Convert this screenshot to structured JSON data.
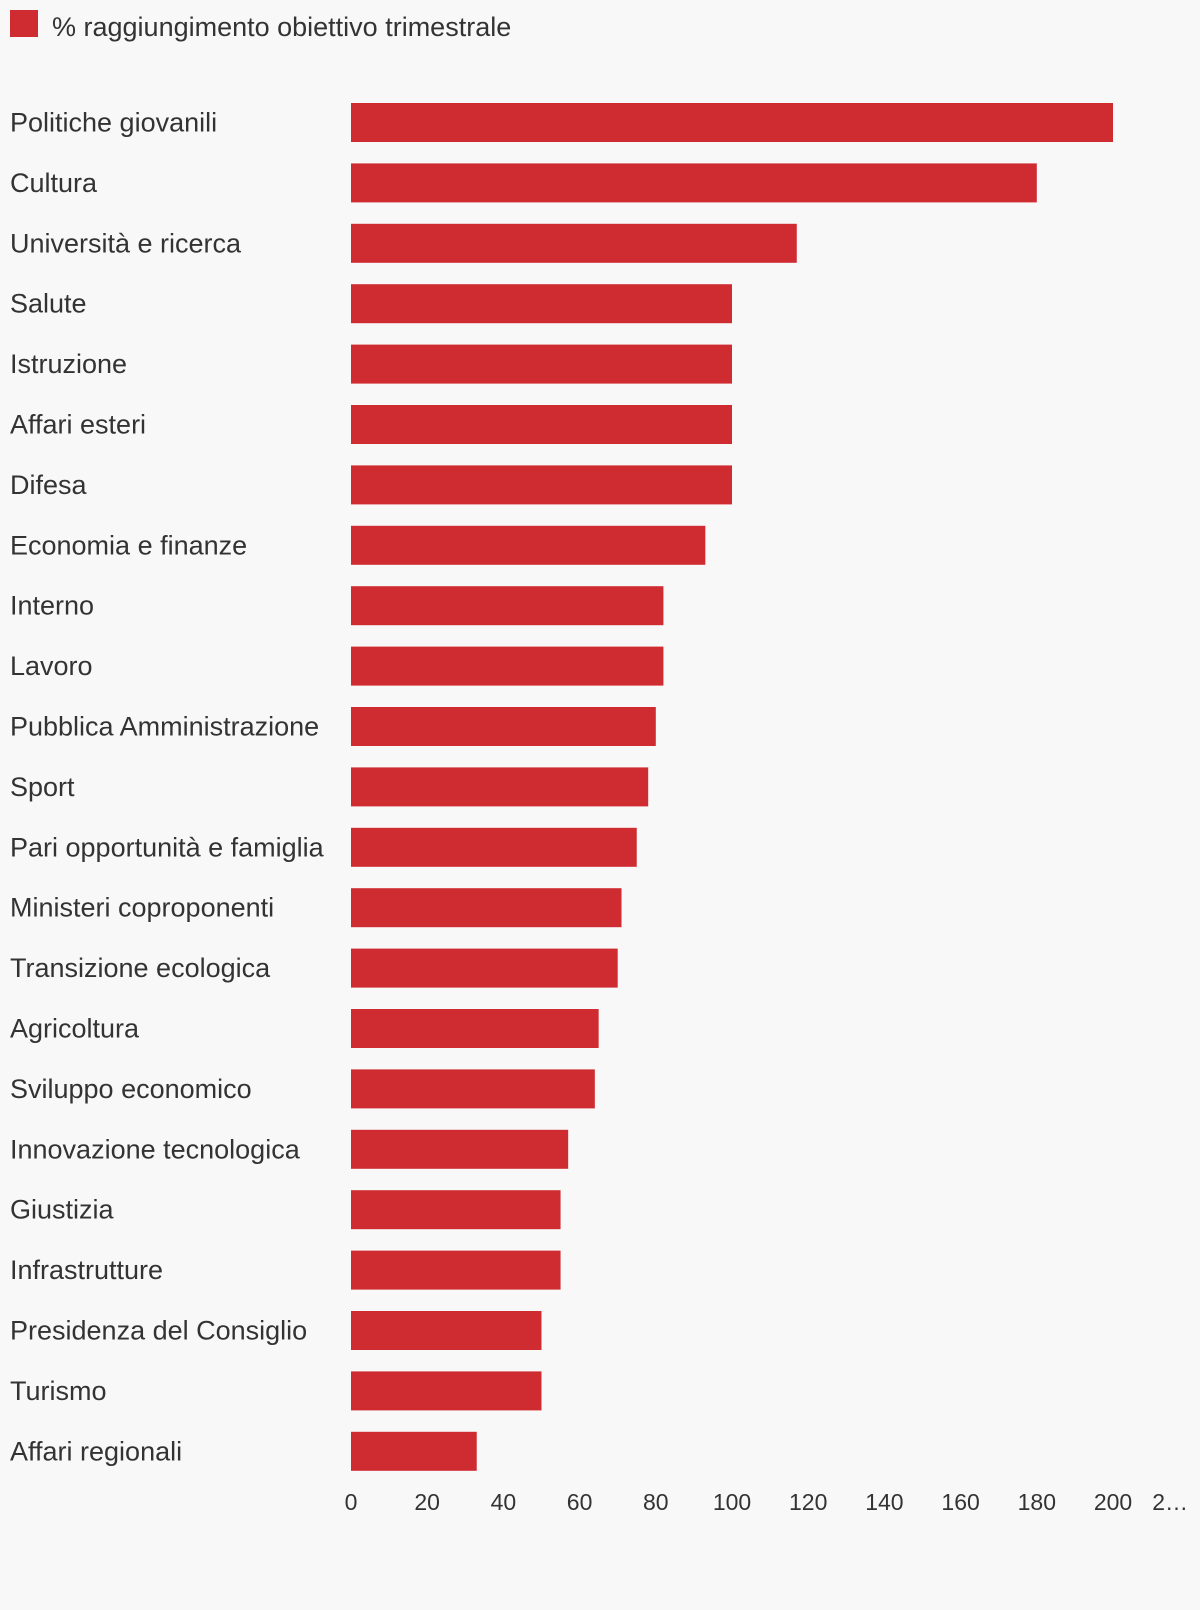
{
  "chart_data": {
    "type": "bar",
    "orientation": "horizontal",
    "legend": "top-left",
    "grid": false,
    "series": [
      {
        "name": "% raggiungimento obiettivo trimestrale",
        "color": "#cf2c31",
        "values": [
          200,
          180,
          117,
          100,
          100,
          100,
          100,
          93,
          82,
          82,
          80,
          78,
          75,
          71,
          70,
          65,
          64,
          57,
          55,
          55,
          50,
          50,
          33
        ]
      }
    ],
    "categories": [
      "Politiche giovanili",
      "Cultura",
      "Università e ricerca",
      "Salute",
      "Istruzione",
      "Affari esteri",
      "Difesa",
      "Economia e finanze",
      "Interno",
      "Lavoro",
      "Pubblica Amministrazione",
      "Sport",
      "Pari opportunità e famiglia",
      "Ministeri coproponenti",
      "Transizione ecologica",
      "Agricoltura",
      "Sviluppo economico",
      "Innovazione tecnologica",
      "Giustizia",
      "Infrastrutture",
      "Presidenza del Consiglio",
      "Turismo",
      "Affari regionali"
    ],
    "xlim": [
      0,
      220
    ],
    "xticks": [
      "0",
      "20",
      "40",
      "60",
      "80",
      "100",
      "120",
      "140",
      "160",
      "180",
      "200",
      "2…"
    ],
    "xlabel": "",
    "ylabel": ""
  }
}
